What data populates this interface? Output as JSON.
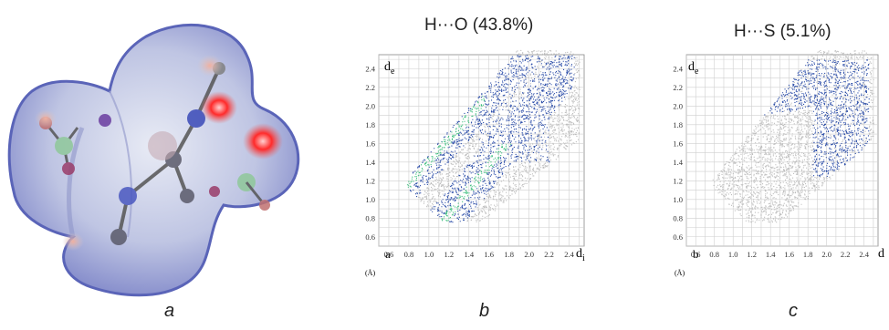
{
  "panels": {
    "a": {
      "caption": "a"
    },
    "b": {
      "title": "H···O (43.8%)",
      "caption": "b",
      "corner_label": "a",
      "y_label_main": "d",
      "y_label_sub": "e",
      "x_label_main": "d",
      "x_label_sub": "i",
      "unit": "(Å)",
      "x_ticks": [
        "0.6",
        "0.8",
        "1.0",
        "1.2",
        "1.4",
        "1.6",
        "1.8",
        "2.0",
        "2.2",
        "2.4"
      ],
      "y_ticks": [
        "0.6",
        "0.8",
        "1.0",
        "1.2",
        "1.4",
        "1.6",
        "1.8",
        "2.0",
        "2.2",
        "2.4"
      ],
      "highlight_color": "#2a4ca8"
    },
    "c": {
      "title": "H···S (5.1%)",
      "caption": "c",
      "corner_label": "b",
      "y_label_main": "d",
      "y_label_sub": "e",
      "x_label_main": "d",
      "unit": "(Å)",
      "x_ticks": [
        "0.6",
        "0.8",
        "1.0",
        "1.2",
        "1.4",
        "1.6",
        "1.8",
        "2.0",
        "2.2",
        "2.4"
      ],
      "y_ticks": [
        "0.6",
        "0.8",
        "1.0",
        "1.2",
        "1.4",
        "1.6",
        "1.8",
        "2.0",
        "2.2",
        "2.4"
      ],
      "highlight_color": "#2a4ca8"
    }
  },
  "colors": {
    "surface": "#b8c0e4",
    "surface_edge": "#5a64b8",
    "hotspot": "#e02020",
    "grey_points": "#bdbdbd",
    "blue_points": "#2a4ca8",
    "green_points": "#3fbf7f"
  }
}
